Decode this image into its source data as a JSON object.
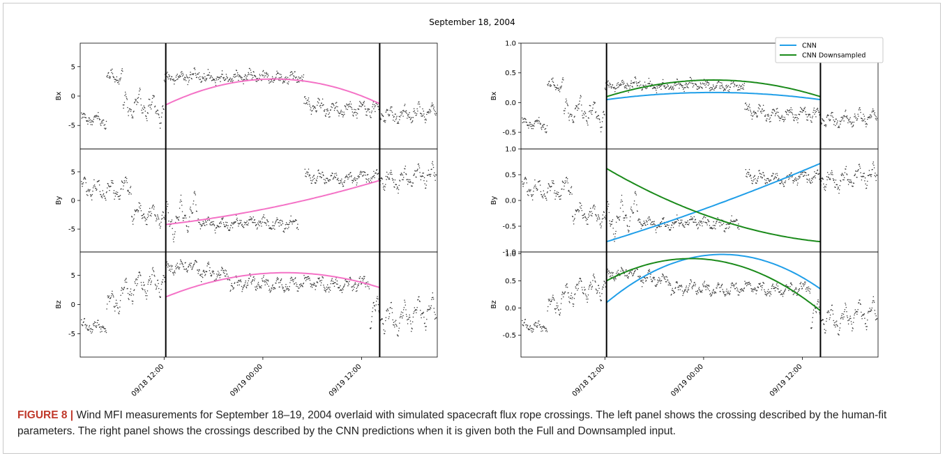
{
  "figure": {
    "suptitle": "September 18, 2004",
    "caption_label": "FIGURE 8",
    "caption_sep": " | ",
    "caption_text": "Wind MFI measurements for September 18–19, 2004 overlaid with simulated spacecraft flux rope crossings. The left panel shows the crossing described by the human-fit parameters. The right panel shows the crossings described by the CNN predictions when it is given both the Full and Downsampled input."
  },
  "chart_data": [
    {
      "type": "scatter",
      "panel": "left",
      "x_ticks": [
        "09/18 12:00",
        "09/19 00:00",
        "09/19 12:00"
      ],
      "x_tick_hours": [
        12,
        24,
        36
      ],
      "xlim_hours": [
        1.8,
        45.2
      ],
      "crossing_boundaries_hours": [
        12.2,
        38.2
      ],
      "subplots": [
        {
          "ylabel": "Bx",
          "ylim": [
            -9,
            9
          ],
          "yticks": [
            -5,
            0,
            5
          ],
          "fit": {
            "name": "human-fit",
            "color": "#f472c6",
            "x": [
              12.2,
              25.2,
              38.2
            ],
            "y": [
              -1.5,
              2.9,
              -1.3
            ]
          }
        },
        {
          "ylabel": "By",
          "ylim": [
            -9,
            9
          ],
          "yticks": [
            -5,
            0,
            5
          ],
          "fit": {
            "name": "human-fit",
            "color": "#f472c6",
            "x": [
              12.2,
              25.2,
              38.2
            ],
            "y": [
              -4.2,
              -1.2,
              3.5
            ]
          }
        },
        {
          "ylabel": "Bz",
          "ylim": [
            -9,
            9
          ],
          "yticks": [
            -5,
            0,
            5
          ],
          "fit": {
            "name": "human-fit",
            "color": "#f472c6",
            "x": [
              12.2,
              25.2,
              38.2
            ],
            "y": [
              1.3,
              5.4,
              2.9
            ]
          }
        }
      ]
    },
    {
      "type": "scatter",
      "panel": "right",
      "x_ticks": [
        "09/18 12:00",
        "09/19 00:00",
        "09/19 12:00"
      ],
      "x_tick_hours": [
        12,
        24,
        36
      ],
      "xlim_hours": [
        1.8,
        45.2
      ],
      "crossing_boundaries_hours": [
        12.2,
        38.2
      ],
      "legend": {
        "placement": "top-right",
        "entries": [
          {
            "name": "CNN",
            "color": "#1f9ee8"
          },
          {
            "name": "CNN Downsampled",
            "color": "#1a8a1a"
          }
        ]
      },
      "subplots": [
        {
          "ylabel": "Bx",
          "ylim": [
            -0.78,
            1.0
          ],
          "yticks": [
            -0.5,
            0.0,
            0.5,
            1.0
          ],
          "fits": [
            {
              "name": "CNN",
              "color": "#1f9ee8",
              "x": [
                12.2,
                25.2,
                38.2
              ],
              "y": [
                0.05,
                0.17,
                0.05
              ]
            },
            {
              "name": "CNN Downsampled",
              "color": "#1a8a1a",
              "x": [
                12.2,
                25.2,
                38.2
              ],
              "y": [
                0.1,
                0.38,
                0.1
              ]
            }
          ]
        },
        {
          "ylabel": "By",
          "ylim": [
            -1.0,
            1.0
          ],
          "yticks": [
            -1.0,
            -0.5,
            0.0,
            0.5,
            1.0
          ],
          "fits": [
            {
              "name": "CNN",
              "color": "#1f9ee8",
              "x": [
                12.2,
                25.2,
                38.2
              ],
              "y": [
                -0.8,
                -0.1,
                0.72
              ]
            },
            {
              "name": "CNN Downsampled",
              "color": "#1a8a1a",
              "x": [
                12.2,
                25.2,
                38.2
              ],
              "y": [
                0.62,
                -0.34,
                -0.8
              ]
            }
          ]
        },
        {
          "ylabel": "Bz",
          "ylim": [
            -0.9,
            1.03
          ],
          "yticks": [
            -0.5,
            0.0,
            0.5,
            1.0
          ],
          "fits": [
            {
              "name": "CNN",
              "color": "#1f9ee8",
              "x": [
                12.2,
                25.2,
                38.2
              ],
              "y": [
                0.1,
                0.98,
                0.35
              ]
            },
            {
              "name": "CNN Downsampled",
              "color": "#1a8a1a",
              "x": [
                12.2,
                25.2,
                38.2
              ],
              "y": [
                0.5,
                0.88,
                -0.05
              ]
            }
          ]
        }
      ]
    }
  ]
}
